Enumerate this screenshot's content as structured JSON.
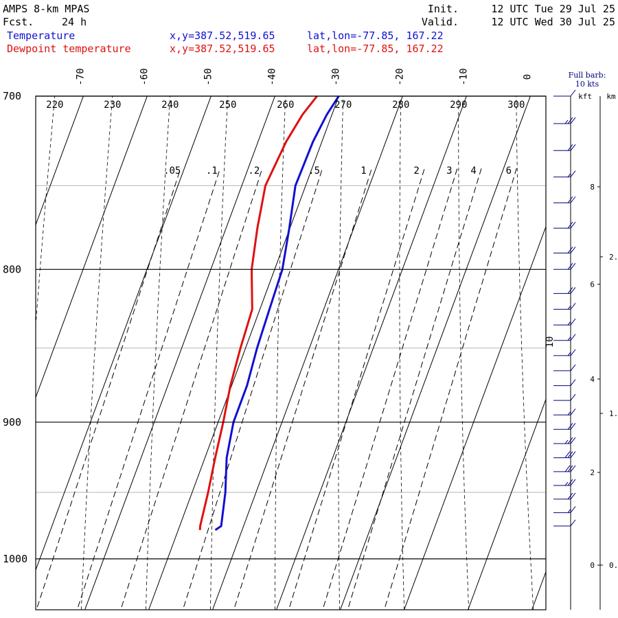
{
  "header": {
    "title": "AMPS 8-km MPAS",
    "fcst_label": "Fcst.",
    "fcst_value": "24 h",
    "init_label": "Init.",
    "init_value": "12 UTC Tue 29 Jul 25",
    "valid_label": "Valid.",
    "valid_value": "12 UTC Wed 30 Jul 25",
    "colors": {
      "temperature": "#1010d0",
      "dewpoint": "#e01010"
    }
  },
  "legend": [
    {
      "name": "Temperature",
      "xy": "x,y=387.52,519.65",
      "latlon": "lat,lon=-77.85, 167.22",
      "color": "#1010d0"
    },
    {
      "name": "Dewpoint temperature",
      "xy": "x,y=387.52,519.65",
      "latlon": "lat,lon=-77.85, 167.22",
      "color": "#e01010"
    }
  ],
  "wind_panel": {
    "title_line1": "Full barb:",
    "title_line2": "10 kts",
    "kft_label": "kft",
    "km_label": "km",
    "kft_ticks": [
      "8",
      "6",
      "4",
      "2",
      "0"
    ],
    "km_ticks": [
      "2.",
      "1.",
      "0."
    ],
    "color": "#000080"
  },
  "chart_data": {
    "type": "line",
    "chart_kind": "skew-T log-p diagram",
    "y_axis": {
      "label": "",
      "scale": "log",
      "ylim": [
        1040,
        700
      ],
      "tick_labels": [
        "700",
        "800",
        "900",
        "1000"
      ]
    },
    "isotherm_labels": [
      "-70",
      "-60",
      "-50",
      "-40",
      "-30",
      "-20",
      "-10",
      "0",
      "10"
    ],
    "potential_temperature_labels": [
      "220",
      "230",
      "240",
      "250",
      "260",
      "270",
      "280",
      "290",
      "300"
    ],
    "mixing_ratio_labels": [
      ".05",
      ".1",
      ".2",
      ".5",
      "1",
      "2",
      "3",
      "4",
      "6"
    ],
    "mixing_ratio_values": [
      0.05,
      0.1,
      0.2,
      0.5,
      1,
      2,
      3,
      4,
      6
    ],
    "series": [
      {
        "name": "Temperature",
        "color": "#1010d0",
        "p": [
          978,
          975,
          950,
          925,
          900,
          875,
          850,
          825,
          800,
          775,
          750,
          725,
          710,
          700
        ],
        "t": [
          -24.2,
          -23.5,
          -24.8,
          -26.6,
          -27.6,
          -27.6,
          -28.2,
          -28.5,
          -28.8,
          -30.1,
          -31.6,
          -31.4,
          -30.8,
          -30.0
        ]
      },
      {
        "name": "Dewpoint temperature",
        "color": "#e01010",
        "p": [
          978,
          975,
          950,
          925,
          900,
          875,
          850,
          825,
          800,
          775,
          750,
          725,
          710,
          700
        ],
        "t": [
          -26.6,
          -26.8,
          -27.5,
          -28.4,
          -29.2,
          -30.2,
          -30.8,
          -31.2,
          -33.6,
          -35.1,
          -36.3,
          -35.6,
          -34.6,
          -33.4
        ]
      }
    ],
    "wind_barbs": [
      {
        "p": 975,
        "speed_kts": 10
      },
      {
        "p": 965,
        "speed_kts": 15
      },
      {
        "p": 955,
        "speed_kts": 20
      },
      {
        "p": 945,
        "speed_kts": 25
      },
      {
        "p": 935,
        "speed_kts": 30
      },
      {
        "p": 925,
        "speed_kts": 30
      },
      {
        "p": 915,
        "speed_kts": 25
      },
      {
        "p": 905,
        "speed_kts": 20
      },
      {
        "p": 895,
        "speed_kts": 15
      },
      {
        "p": 885,
        "speed_kts": 10
      },
      {
        "p": 875,
        "speed_kts": 10
      },
      {
        "p": 865,
        "speed_kts": 10
      },
      {
        "p": 855,
        "speed_kts": 15
      },
      {
        "p": 845,
        "speed_kts": 15
      },
      {
        "p": 835,
        "speed_kts": 15
      },
      {
        "p": 825,
        "speed_kts": 15
      },
      {
        "p": 815,
        "speed_kts": 20
      },
      {
        "p": 800,
        "speed_kts": 20
      },
      {
        "p": 790,
        "speed_kts": 20
      },
      {
        "p": 775,
        "speed_kts": 20
      },
      {
        "p": 760,
        "speed_kts": 20
      },
      {
        "p": 745,
        "speed_kts": 15
      },
      {
        "p": 730,
        "speed_kts": 20
      },
      {
        "p": 715,
        "speed_kts": 25
      },
      {
        "p": 700,
        "speed_kts": 10
      }
    ]
  }
}
